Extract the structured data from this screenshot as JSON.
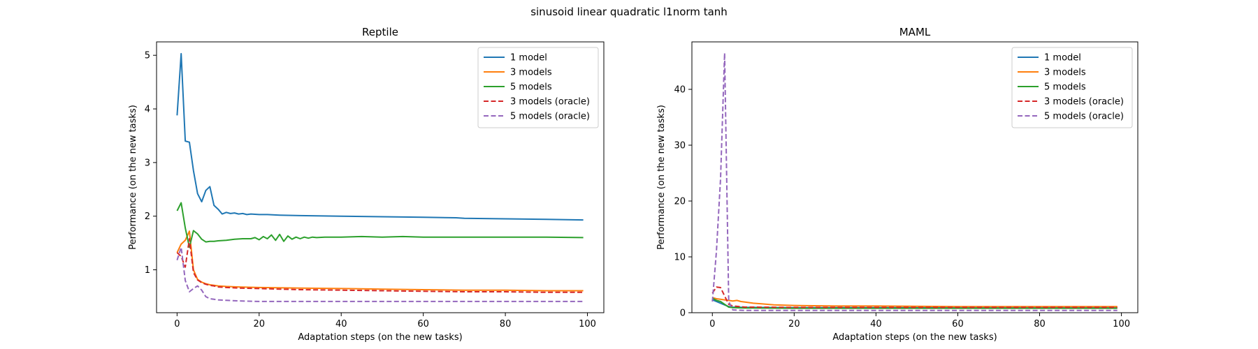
{
  "figure": {
    "suptitle": "sinusoid linear quadratic l1norm tanh"
  },
  "chart_data": [
    {
      "type": "line",
      "title": "Reptile",
      "xlabel": "Adaptation steps (on the new tasks)",
      "ylabel": "Performance (on the new tasks)",
      "xlim": [
        -5,
        104
      ],
      "ylim": [
        0.2,
        5.25
      ],
      "xticks": [
        0,
        20,
        40,
        60,
        80,
        100
      ],
      "yticks": [
        1,
        2,
        3,
        4,
        5
      ],
      "legend_position": "upper-right",
      "grid": false,
      "series": [
        {
          "name": "1 model",
          "color": "#1f77b4",
          "dashed": false,
          "points": [
            [
              0,
              3.88
            ],
            [
              1,
              5.03
            ],
            [
              2,
              3.4
            ],
            [
              3,
              3.38
            ],
            [
              4,
              2.85
            ],
            [
              5,
              2.42
            ],
            [
              6,
              2.27
            ],
            [
              7,
              2.48
            ],
            [
              8,
              2.55
            ],
            [
              9,
              2.2
            ],
            [
              10,
              2.13
            ],
            [
              11,
              2.04
            ],
            [
              12,
              2.07
            ],
            [
              13,
              2.05
            ],
            [
              14,
              2.06
            ],
            [
              15,
              2.04
            ],
            [
              16,
              2.05
            ],
            [
              17,
              2.03
            ],
            [
              18,
              2.04
            ],
            [
              20,
              2.03
            ],
            [
              22,
              2.03
            ],
            [
              25,
              2.02
            ],
            [
              30,
              2.01
            ],
            [
              40,
              2.0
            ],
            [
              50,
              1.99
            ],
            [
              60,
              1.98
            ],
            [
              68,
              1.97
            ],
            [
              70,
              1.96
            ],
            [
              80,
              1.95
            ],
            [
              90,
              1.94
            ],
            [
              99,
              1.93
            ]
          ]
        },
        {
          "name": "3 models",
          "color": "#ff7f0e",
          "dashed": false,
          "points": [
            [
              0,
              1.32
            ],
            [
              1,
              1.48
            ],
            [
              2,
              1.55
            ],
            [
              3,
              1.72
            ],
            [
              4,
              1.0
            ],
            [
              5,
              0.82
            ],
            [
              6,
              0.77
            ],
            [
              7,
              0.74
            ],
            [
              8,
              0.72
            ],
            [
              9,
              0.71
            ],
            [
              10,
              0.7
            ],
            [
              12,
              0.69
            ],
            [
              15,
              0.68
            ],
            [
              20,
              0.67
            ],
            [
              30,
              0.66
            ],
            [
              40,
              0.65
            ],
            [
              50,
              0.64
            ],
            [
              60,
              0.63
            ],
            [
              70,
              0.62
            ],
            [
              80,
              0.62
            ],
            [
              90,
              0.61
            ],
            [
              99,
              0.61
            ]
          ]
        },
        {
          "name": "5 models",
          "color": "#2ca02c",
          "dashed": false,
          "points": [
            [
              0,
              2.1
            ],
            [
              1,
              2.25
            ],
            [
              2,
              1.78
            ],
            [
              3,
              1.42
            ],
            [
              4,
              1.73
            ],
            [
              5,
              1.67
            ],
            [
              6,
              1.57
            ],
            [
              7,
              1.52
            ],
            [
              8,
              1.53
            ],
            [
              9,
              1.53
            ],
            [
              10,
              1.54
            ],
            [
              12,
              1.55
            ],
            [
              14,
              1.57
            ],
            [
              16,
              1.58
            ],
            [
              18,
              1.58
            ],
            [
              19,
              1.6
            ],
            [
              20,
              1.56
            ],
            [
              21,
              1.62
            ],
            [
              22,
              1.58
            ],
            [
              23,
              1.65
            ],
            [
              24,
              1.55
            ],
            [
              25,
              1.66
            ],
            [
              26,
              1.53
            ],
            [
              27,
              1.63
            ],
            [
              28,
              1.57
            ],
            [
              29,
              1.61
            ],
            [
              30,
              1.58
            ],
            [
              31,
              1.61
            ],
            [
              32,
              1.59
            ],
            [
              33,
              1.61
            ],
            [
              34,
              1.6
            ],
            [
              36,
              1.61
            ],
            [
              40,
              1.61
            ],
            [
              45,
              1.62
            ],
            [
              50,
              1.61
            ],
            [
              55,
              1.62
            ],
            [
              60,
              1.61
            ],
            [
              70,
              1.61
            ],
            [
              80,
              1.61
            ],
            [
              90,
              1.61
            ],
            [
              99,
              1.6
            ]
          ]
        },
        {
          "name": "3 models (oracle)",
          "color": "#d62728",
          "dashed": true,
          "points": [
            [
              0,
              1.32
            ],
            [
              1,
              1.25
            ],
            [
              2,
              1.05
            ],
            [
              3,
              1.58
            ],
            [
              4,
              0.95
            ],
            [
              5,
              0.81
            ],
            [
              6,
              0.76
            ],
            [
              7,
              0.73
            ],
            [
              8,
              0.71
            ],
            [
              9,
              0.7
            ],
            [
              10,
              0.68
            ],
            [
              12,
              0.67
            ],
            [
              15,
              0.66
            ],
            [
              20,
              0.65
            ],
            [
              30,
              0.63
            ],
            [
              40,
              0.62
            ],
            [
              50,
              0.61
            ],
            [
              60,
              0.6
            ],
            [
              70,
              0.59
            ],
            [
              80,
              0.59
            ],
            [
              90,
              0.58
            ],
            [
              99,
              0.58
            ]
          ]
        },
        {
          "name": "5 models (oracle)",
          "color": "#9467bd",
          "dashed": true,
          "points": [
            [
              0,
              1.18
            ],
            [
              1,
              1.42
            ],
            [
              2,
              0.8
            ],
            [
              3,
              0.59
            ],
            [
              4,
              0.65
            ],
            [
              5,
              0.7
            ],
            [
              6,
              0.62
            ],
            [
              7,
              0.5
            ],
            [
              8,
              0.46
            ],
            [
              9,
              0.45
            ],
            [
              10,
              0.44
            ],
            [
              12,
              0.43
            ],
            [
              15,
              0.42
            ],
            [
              20,
              0.41
            ],
            [
              30,
              0.41
            ],
            [
              40,
              0.41
            ],
            [
              50,
              0.41
            ],
            [
              60,
              0.41
            ],
            [
              70,
              0.41
            ],
            [
              80,
              0.41
            ],
            [
              90,
              0.41
            ],
            [
              99,
              0.41
            ]
          ]
        }
      ]
    },
    {
      "type": "line",
      "title": "MAML",
      "xlabel": "Adaptation steps (on the new tasks)",
      "ylabel": "Performance (on the new tasks)",
      "xlim": [
        -5,
        104
      ],
      "ylim": [
        0,
        48.5
      ],
      "xticks": [
        0,
        20,
        40,
        60,
        80,
        100
      ],
      "yticks": [
        0,
        10,
        20,
        30,
        40
      ],
      "legend_position": "upper-right",
      "grid": false,
      "series": [
        {
          "name": "1 model",
          "color": "#1f77b4",
          "dashed": false,
          "points": [
            [
              0,
              2.3
            ],
            [
              1,
              2.0
            ],
            [
              2,
              1.7
            ],
            [
              3,
              1.4
            ],
            [
              4,
              1.1
            ],
            [
              5,
              1.0
            ],
            [
              8,
              0.95
            ],
            [
              10,
              0.95
            ],
            [
              20,
              0.9
            ],
            [
              40,
              0.9
            ],
            [
              60,
              0.9
            ],
            [
              80,
              0.9
            ],
            [
              99,
              0.9
            ]
          ]
        },
        {
          "name": "3 models",
          "color": "#ff7f0e",
          "dashed": false,
          "points": [
            [
              0,
              2.7
            ],
            [
              1,
              2.5
            ],
            [
              2,
              2.4
            ],
            [
              3,
              2.3
            ],
            [
              4,
              2.2
            ],
            [
              5,
              2.1
            ],
            [
              6,
              2.2
            ],
            [
              7,
              2.0
            ],
            [
              8,
              1.9
            ],
            [
              10,
              1.7
            ],
            [
              12,
              1.6
            ],
            [
              15,
              1.4
            ],
            [
              20,
              1.3
            ],
            [
              30,
              1.2
            ],
            [
              40,
              1.2
            ],
            [
              60,
              1.1
            ],
            [
              80,
              1.1
            ],
            [
              99,
              1.1
            ]
          ]
        },
        {
          "name": "5 models",
          "color": "#2ca02c",
          "dashed": false,
          "points": [
            [
              0,
              2.6
            ],
            [
              1,
              2.2
            ],
            [
              2,
              2.0
            ],
            [
              3,
              1.5
            ],
            [
              4,
              1.0
            ],
            [
              5,
              0.9
            ],
            [
              8,
              0.85
            ],
            [
              10,
              0.85
            ],
            [
              20,
              0.8
            ],
            [
              40,
              0.8
            ],
            [
              60,
              0.8
            ],
            [
              80,
              0.8
            ],
            [
              99,
              0.8
            ]
          ]
        },
        {
          "name": "3 models (oracle)",
          "color": "#d62728",
          "dashed": true,
          "points": [
            [
              0,
              3.5
            ],
            [
              1,
              4.6
            ],
            [
              2,
              4.5
            ],
            [
              3,
              3.0
            ],
            [
              4,
              1.5
            ],
            [
              5,
              1.2
            ],
            [
              8,
              1.0
            ],
            [
              10,
              1.0
            ],
            [
              20,
              0.95
            ],
            [
              40,
              0.95
            ],
            [
              60,
              0.95
            ],
            [
              80,
              0.95
            ],
            [
              99,
              0.95
            ]
          ]
        },
        {
          "name": "5 models (oracle)",
          "color": "#9467bd",
          "dashed": true,
          "points": [
            [
              0,
              2.0
            ],
            [
              1,
              11.0
            ],
            [
              2,
              24.0
            ],
            [
              3,
              46.5
            ],
            [
              4,
              2.0
            ],
            [
              5,
              0.5
            ],
            [
              8,
              0.4
            ],
            [
              10,
              0.4
            ],
            [
              20,
              0.4
            ],
            [
              40,
              0.4
            ],
            [
              60,
              0.4
            ],
            [
              80,
              0.4
            ],
            [
              99,
              0.4
            ]
          ]
        }
      ]
    }
  ]
}
